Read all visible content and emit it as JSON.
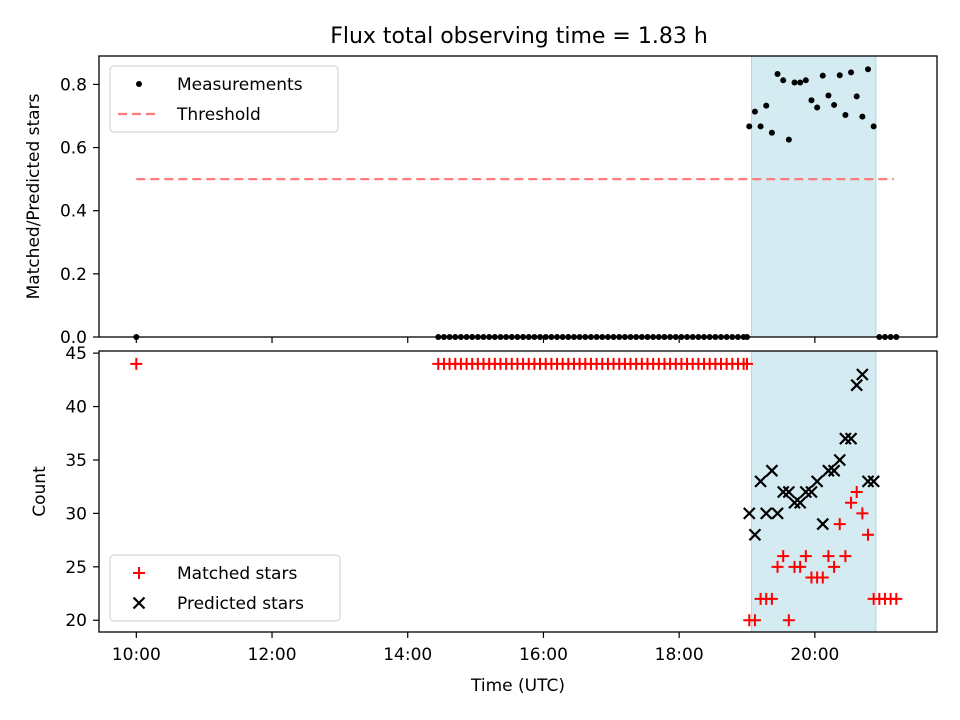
{
  "chart_data": [
    {
      "type": "scatter",
      "title": "Flux total observing time = 1.83 h",
      "xlabel": "",
      "ylabel": "Matched/Predicted stars",
      "xlim": [
        "09:27",
        "21:48"
      ],
      "ylim": [
        0,
        0.89
      ],
      "yticks": [
        "0.0",
        "0.2",
        "0.4",
        "0.6",
        "0.8"
      ],
      "xticks": [
        "10:00",
        "12:00",
        "14:00",
        "16:00",
        "18:00",
        "20:00"
      ],
      "shaded_interval": [
        "19:04",
        "20:54"
      ],
      "legend": {
        "position": "top-left",
        "entries": [
          "Measurements",
          "Threshold"
        ]
      },
      "threshold": {
        "name": "Threshold",
        "value": 0.5,
        "x": [
          "10:00",
          "21:10"
        ],
        "color": "#ff7a7a"
      },
      "series": [
        {
          "name": "Measurements",
          "color": "#000000",
          "points": [
            [
              "10:00",
              0.0
            ],
            [
              "14:27",
              0.0
            ],
            [
              "14:32",
              0.0
            ],
            [
              "14:37",
              0.0
            ],
            [
              "14:42",
              0.0
            ],
            [
              "14:47",
              0.0
            ],
            [
              "14:52",
              0.0
            ],
            [
              "14:57",
              0.0
            ],
            [
              "15:02",
              0.0
            ],
            [
              "15:07",
              0.0
            ],
            [
              "15:12",
              0.0
            ],
            [
              "15:17",
              0.0
            ],
            [
              "15:22",
              0.0
            ],
            [
              "15:27",
              0.0
            ],
            [
              "15:32",
              0.0
            ],
            [
              "15:37",
              0.0
            ],
            [
              "15:42",
              0.0
            ],
            [
              "15:47",
              0.0
            ],
            [
              "15:52",
              0.0
            ],
            [
              "15:57",
              0.0
            ],
            [
              "16:02",
              0.0
            ],
            [
              "16:07",
              0.0
            ],
            [
              "16:12",
              0.0
            ],
            [
              "16:17",
              0.0
            ],
            [
              "16:22",
              0.0
            ],
            [
              "16:27",
              0.0
            ],
            [
              "16:32",
              0.0
            ],
            [
              "16:37",
              0.0
            ],
            [
              "16:42",
              0.0
            ],
            [
              "16:47",
              0.0
            ],
            [
              "16:52",
              0.0
            ],
            [
              "16:57",
              0.0
            ],
            [
              "17:02",
              0.0
            ],
            [
              "17:07",
              0.0
            ],
            [
              "17:12",
              0.0
            ],
            [
              "17:17",
              0.0
            ],
            [
              "17:22",
              0.0
            ],
            [
              "17:27",
              0.0
            ],
            [
              "17:32",
              0.0
            ],
            [
              "17:37",
              0.0
            ],
            [
              "17:42",
              0.0
            ],
            [
              "17:47",
              0.0
            ],
            [
              "17:52",
              0.0
            ],
            [
              "17:57",
              0.0
            ],
            [
              "18:02",
              0.0
            ],
            [
              "18:07",
              0.0
            ],
            [
              "18:12",
              0.0
            ],
            [
              "18:17",
              0.0
            ],
            [
              "18:22",
              0.0
            ],
            [
              "18:27",
              0.0
            ],
            [
              "18:32",
              0.0
            ],
            [
              "18:37",
              0.0
            ],
            [
              "18:42",
              0.0
            ],
            [
              "18:47",
              0.0
            ],
            [
              "18:52",
              0.0
            ],
            [
              "18:57",
              0.0
            ],
            [
              "19:00",
              0.0
            ],
            [
              "19:02",
              0.667
            ],
            [
              "19:07",
              0.714
            ],
            [
              "19:12",
              0.667
            ],
            [
              "19:17",
              0.733
            ],
            [
              "19:22",
              0.647
            ],
            [
              "19:27",
              0.833
            ],
            [
              "19:32",
              0.813
            ],
            [
              "19:37",
              0.625
            ],
            [
              "19:42",
              0.806
            ],
            [
              "19:47",
              0.806
            ],
            [
              "19:52",
              0.813
            ],
            [
              "19:57",
              0.75
            ],
            [
              "20:02",
              0.727
            ],
            [
              "20:07",
              0.828
            ],
            [
              "20:12",
              0.765
            ],
            [
              "20:17",
              0.735
            ],
            [
              "20:22",
              0.829
            ],
            [
              "20:27",
              0.703
            ],
            [
              "20:32",
              0.838
            ],
            [
              "20:37",
              0.762
            ],
            [
              "20:42",
              0.698
            ],
            [
              "20:47",
              0.848
            ],
            [
              "20:52",
              0.667
            ],
            [
              "20:57",
              0.0
            ],
            [
              "21:02",
              0.0
            ],
            [
              "21:07",
              0.0
            ],
            [
              "21:12",
              0.0
            ]
          ]
        }
      ]
    },
    {
      "type": "scatter",
      "title": "",
      "xlabel": "Time (UTC)",
      "ylabel": "Count",
      "xlim": [
        "09:27",
        "21:48"
      ],
      "ylim": [
        18.9,
        45.2
      ],
      "yticks": [
        "20",
        "25",
        "30",
        "35",
        "40",
        "45"
      ],
      "xticks": [
        "10:00",
        "12:00",
        "14:00",
        "16:00",
        "18:00",
        "20:00"
      ],
      "shaded_interval": [
        "19:04",
        "20:54"
      ],
      "legend": {
        "position": "bottom-left",
        "entries": [
          "Matched stars",
          "Predicted stars"
        ]
      },
      "series": [
        {
          "name": "Matched stars",
          "color": "#ff0000",
          "marker": "+",
          "points": [
            [
              "10:00",
              44
            ],
            [
              "14:27",
              44
            ],
            [
              "14:32",
              44
            ],
            [
              "14:37",
              44
            ],
            [
              "14:42",
              44
            ],
            [
              "14:47",
              44
            ],
            [
              "14:52",
              44
            ],
            [
              "14:57",
              44
            ],
            [
              "15:02",
              44
            ],
            [
              "15:07",
              44
            ],
            [
              "15:12",
              44
            ],
            [
              "15:17",
              44
            ],
            [
              "15:22",
              44
            ],
            [
              "15:27",
              44
            ],
            [
              "15:32",
              44
            ],
            [
              "15:37",
              44
            ],
            [
              "15:42",
              44
            ],
            [
              "15:47",
              44
            ],
            [
              "15:52",
              44
            ],
            [
              "15:57",
              44
            ],
            [
              "16:02",
              44
            ],
            [
              "16:07",
              44
            ],
            [
              "16:12",
              44
            ],
            [
              "16:17",
              44
            ],
            [
              "16:22",
              44
            ],
            [
              "16:27",
              44
            ],
            [
              "16:32",
              44
            ],
            [
              "16:37",
              44
            ],
            [
              "16:42",
              44
            ],
            [
              "16:47",
              44
            ],
            [
              "16:52",
              44
            ],
            [
              "16:57",
              44
            ],
            [
              "17:02",
              44
            ],
            [
              "17:07",
              44
            ],
            [
              "17:12",
              44
            ],
            [
              "17:17",
              44
            ],
            [
              "17:22",
              44
            ],
            [
              "17:27",
              44
            ],
            [
              "17:32",
              44
            ],
            [
              "17:37",
              44
            ],
            [
              "17:42",
              44
            ],
            [
              "17:47",
              44
            ],
            [
              "17:52",
              44
            ],
            [
              "17:57",
              44
            ],
            [
              "18:02",
              44
            ],
            [
              "18:07",
              44
            ],
            [
              "18:12",
              44
            ],
            [
              "18:17",
              44
            ],
            [
              "18:22",
              44
            ],
            [
              "18:27",
              44
            ],
            [
              "18:32",
              44
            ],
            [
              "18:37",
              44
            ],
            [
              "18:42",
              44
            ],
            [
              "18:47",
              44
            ],
            [
              "18:52",
              44
            ],
            [
              "18:57",
              44
            ],
            [
              "19:00",
              44
            ],
            [
              "19:02",
              20
            ],
            [
              "19:07",
              20
            ],
            [
              "19:12",
              22
            ],
            [
              "19:17",
              22
            ],
            [
              "19:22",
              22
            ],
            [
              "19:27",
              25
            ],
            [
              "19:32",
              26
            ],
            [
              "19:37",
              20
            ],
            [
              "19:42",
              25
            ],
            [
              "19:47",
              25
            ],
            [
              "19:52",
              26
            ],
            [
              "19:57",
              24
            ],
            [
              "20:02",
              24
            ],
            [
              "20:07",
              24
            ],
            [
              "20:12",
              26
            ],
            [
              "20:17",
              25
            ],
            [
              "20:22",
              29
            ],
            [
              "20:27",
              26
            ],
            [
              "20:32",
              31
            ],
            [
              "20:37",
              32
            ],
            [
              "20:42",
              30
            ],
            [
              "20:47",
              28
            ],
            [
              "20:52",
              22
            ],
            [
              "20:57",
              22
            ],
            [
              "21:02",
              22
            ],
            [
              "21:07",
              22
            ],
            [
              "21:12",
              22
            ]
          ]
        },
        {
          "name": "Predicted stars",
          "color": "#000000",
          "marker": "x",
          "points": [
            [
              "19:02",
              30
            ],
            [
              "19:07",
              28
            ],
            [
              "19:12",
              33
            ],
            [
              "19:17",
              30
            ],
            [
              "19:22",
              34
            ],
            [
              "19:27",
              30
            ],
            [
              "19:32",
              32
            ],
            [
              "19:37",
              32
            ],
            [
              "19:42",
              31
            ],
            [
              "19:47",
              31
            ],
            [
              "19:52",
              32
            ],
            [
              "19:57",
              32
            ],
            [
              "20:02",
              33
            ],
            [
              "20:07",
              29
            ],
            [
              "20:12",
              34
            ],
            [
              "20:17",
              34
            ],
            [
              "20:22",
              35
            ],
            [
              "20:27",
              37
            ],
            [
              "20:32",
              37
            ],
            [
              "20:37",
              42
            ],
            [
              "20:42",
              43
            ],
            [
              "20:47",
              33
            ],
            [
              "20:52",
              33
            ]
          ]
        }
      ]
    }
  ]
}
